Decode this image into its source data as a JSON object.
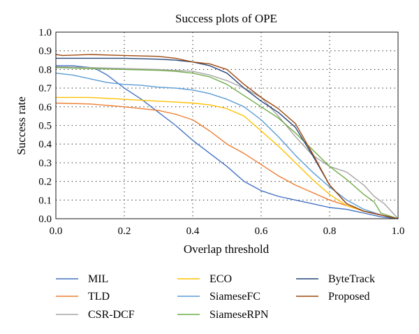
{
  "chart_data": {
    "type": "line",
    "title": "Success plots of OPE",
    "xlabel": "Overlap threshold",
    "ylabel": "Success rate",
    "xlim": [
      0,
      1
    ],
    "ylim": [
      0,
      1
    ],
    "x_ticks": [
      "0.0",
      "0.2",
      "0.4",
      "0.6",
      "0.8",
      "1.0"
    ],
    "y_ticks": [
      "0.0",
      "0.1",
      "0.2",
      "0.3",
      "0.4",
      "0.5",
      "0.6",
      "0.7",
      "0.8",
      "0.9",
      "1.0"
    ],
    "grid": "dotted",
    "legend_position": "bottom",
    "series": [
      {
        "name": "MIL",
        "color": "#4472c4",
        "x": [
          0,
          0.05,
          0.1,
          0.12,
          0.15,
          0.2,
          0.25,
          0.3,
          0.35,
          0.4,
          0.45,
          0.5,
          0.55,
          0.6,
          0.65,
          0.7,
          0.75,
          0.8,
          0.85,
          0.9,
          0.95,
          1.0
        ],
        "y": [
          0.82,
          0.82,
          0.81,
          0.8,
          0.77,
          0.7,
          0.64,
          0.57,
          0.5,
          0.42,
          0.35,
          0.28,
          0.2,
          0.15,
          0.12,
          0.1,
          0.08,
          0.06,
          0.05,
          0.03,
          0.01,
          0
        ]
      },
      {
        "name": "TLD",
        "color": "#ed7d31",
        "x": [
          0,
          0.1,
          0.2,
          0.3,
          0.35,
          0.4,
          0.45,
          0.5,
          0.55,
          0.6,
          0.65,
          0.7,
          0.75,
          0.8,
          0.85,
          0.9,
          0.95,
          1.0
        ],
        "y": [
          0.62,
          0.615,
          0.6,
          0.58,
          0.56,
          0.53,
          0.47,
          0.4,
          0.35,
          0.29,
          0.23,
          0.18,
          0.14,
          0.1,
          0.07,
          0.04,
          0.02,
          0
        ]
      },
      {
        "name": "CSR-DCF",
        "color": "#a5a5a5",
        "x": [
          0,
          0.1,
          0.2,
          0.3,
          0.4,
          0.45,
          0.5,
          0.55,
          0.6,
          0.65,
          0.7,
          0.75,
          0.8,
          0.85,
          0.9,
          0.93,
          0.96,
          1.0
        ],
        "y": [
          0.815,
          0.81,
          0.805,
          0.8,
          0.79,
          0.77,
          0.74,
          0.7,
          0.65,
          0.55,
          0.44,
          0.34,
          0.28,
          0.25,
          0.18,
          0.12,
          0.08,
          0
        ]
      },
      {
        "name": "ECO",
        "color": "#ffc000",
        "x": [
          0,
          0.1,
          0.2,
          0.3,
          0.35,
          0.4,
          0.45,
          0.5,
          0.55,
          0.6,
          0.65,
          0.7,
          0.75,
          0.8,
          0.85,
          0.9,
          0.95,
          1.0
        ],
        "y": [
          0.65,
          0.65,
          0.64,
          0.63,
          0.625,
          0.62,
          0.61,
          0.59,
          0.55,
          0.47,
          0.39,
          0.3,
          0.21,
          0.13,
          0.07,
          0.04,
          0.02,
          0
        ]
      },
      {
        "name": "SiameseFC",
        "color": "#5b9bd5",
        "x": [
          0,
          0.05,
          0.1,
          0.15,
          0.2,
          0.25,
          0.3,
          0.35,
          0.4,
          0.45,
          0.5,
          0.55,
          0.6,
          0.65,
          0.7,
          0.75,
          0.8,
          0.85,
          0.9,
          0.95,
          1.0
        ],
        "y": [
          0.78,
          0.77,
          0.75,
          0.73,
          0.72,
          0.715,
          0.705,
          0.7,
          0.69,
          0.67,
          0.64,
          0.6,
          0.53,
          0.44,
          0.34,
          0.25,
          0.17,
          0.1,
          0.05,
          0.02,
          0
        ]
      },
      {
        "name": "SiameseRPN",
        "color": "#70ad47",
        "x": [
          0,
          0.1,
          0.2,
          0.3,
          0.35,
          0.4,
          0.45,
          0.5,
          0.55,
          0.6,
          0.65,
          0.7,
          0.75,
          0.8,
          0.85,
          0.9,
          0.93,
          0.95,
          1.0
        ],
        "y": [
          0.81,
          0.805,
          0.8,
          0.795,
          0.79,
          0.78,
          0.76,
          0.72,
          0.66,
          0.6,
          0.54,
          0.46,
          0.37,
          0.28,
          0.21,
          0.13,
          0.09,
          0.03,
          0
        ]
      },
      {
        "name": "ByteTrack",
        "color": "#264478",
        "x": [
          0,
          0.1,
          0.2,
          0.3,
          0.35,
          0.4,
          0.45,
          0.5,
          0.55,
          0.6,
          0.65,
          0.7,
          0.75,
          0.8,
          0.85,
          0.9,
          0.95,
          1.0
        ],
        "y": [
          0.86,
          0.86,
          0.86,
          0.855,
          0.85,
          0.84,
          0.82,
          0.78,
          0.7,
          0.63,
          0.57,
          0.49,
          0.34,
          0.18,
          0.08,
          0.04,
          0.02,
          0
        ]
      },
      {
        "name": "Proposed",
        "color": "#9e480e",
        "x": [
          0,
          0.02,
          0.1,
          0.2,
          0.3,
          0.35,
          0.4,
          0.45,
          0.5,
          0.55,
          0.6,
          0.65,
          0.7,
          0.75,
          0.8,
          0.85,
          0.9,
          0.95,
          1.0
        ],
        "y": [
          0.88,
          0.875,
          0.88,
          0.875,
          0.87,
          0.86,
          0.84,
          0.83,
          0.8,
          0.72,
          0.65,
          0.59,
          0.51,
          0.35,
          0.18,
          0.08,
          0.04,
          0.02,
          0
        ]
      }
    ]
  }
}
